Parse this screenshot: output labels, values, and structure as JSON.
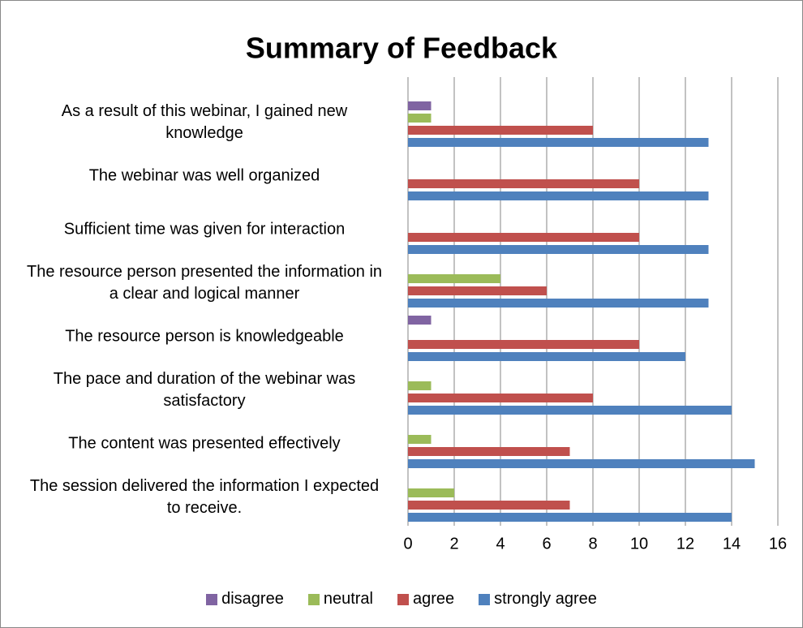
{
  "chart_data": {
    "type": "bar",
    "orientation": "horizontal",
    "title": "Summary of Feedback",
    "categories": [
      "As a result of this webinar, I gained new knowledge",
      "The webinar  was well organized",
      "Sufficient time was given for interaction",
      "The resource person presented the information in a clear and logical manner",
      "The resource person is knowledgeable",
      "The pace and duration of the webinar was satisfactory",
      "The content was presented effectively",
      "The session delivered the information I expected to receive."
    ],
    "series": [
      {
        "name": "disagree",
        "color": "#8064a2",
        "values": [
          1,
          0,
          0,
          0,
          1,
          0,
          0,
          0
        ]
      },
      {
        "name": "neutral",
        "color": "#9bbb59",
        "values": [
          1,
          0,
          0,
          4,
          0,
          1,
          1,
          2
        ]
      },
      {
        "name": "agree",
        "color": "#c0504d",
        "values": [
          8,
          10,
          10,
          6,
          10,
          8,
          7,
          7
        ]
      },
      {
        "name": "strongly agree",
        "color": "#4f81bd",
        "values": [
          13,
          13,
          13,
          13,
          12,
          14,
          15,
          14
        ]
      }
    ],
    "xlim": [
      0,
      16
    ],
    "xticks": [
      0,
      2,
      4,
      6,
      8,
      10,
      12,
      14,
      16
    ],
    "grid": true,
    "legend": "bottom"
  }
}
